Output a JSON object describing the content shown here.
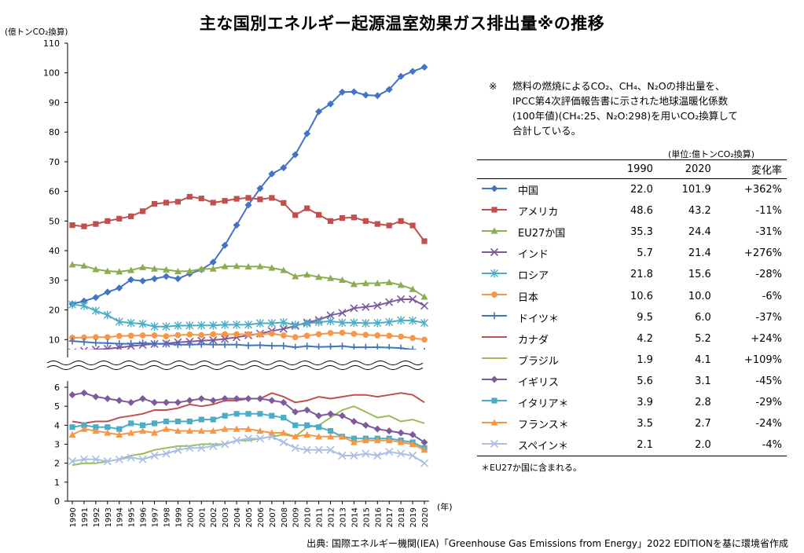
{
  "title": "主な国別エネルギー起源温室効果ガス排出量※の推移",
  "note": {
    "mark": "※",
    "lines": [
      "燃料の燃焼によるCO₂、CH₄、N₂Oの排出量を、",
      "IPCC第4次評価報告書に示された地球温暖化係数",
      "(100年値)(CH₄:25、N₂O:298)を用いCO₂換算して",
      "合計している。"
    ]
  },
  "unit_label": "(単位:億トンCO₂換算)",
  "table_headers": {
    "y1990": "1990",
    "y2020": "2020",
    "change": "変化率"
  },
  "footnote": "＊EU27か国に含まれる。",
  "source": "出典: 国際エネルギー機関(IEA)「Greenhouse Gas Emissions from Energy」2022 EDITIONを基に環境省作成",
  "chart_data": {
    "type": "line",
    "ylabel": "(億トンCO₂換算)",
    "xlabel": "(年)",
    "x": [
      1990,
      1991,
      1992,
      1993,
      1994,
      1995,
      1996,
      1997,
      1998,
      1999,
      2000,
      2001,
      2002,
      2003,
      2004,
      2005,
      2006,
      2007,
      2008,
      2009,
      2010,
      2011,
      2012,
      2013,
      2014,
      2015,
      2016,
      2017,
      2018,
      2019,
      2020
    ],
    "upper_panel": {
      "ylim": [
        0,
        110
      ],
      "yticks": [
        10,
        20,
        30,
        40,
        50,
        60,
        70,
        80,
        90,
        100,
        110
      ]
    },
    "lower_panel": {
      "ylim": [
        0,
        6
      ],
      "yticks": [
        0,
        1,
        2,
        3,
        4,
        5,
        6
      ]
    },
    "series": [
      {
        "name": "中国",
        "panel": "upper",
        "color": "#4472C4",
        "marker": "diamond",
        "v1990": "22.0",
        "v2020": "101.9",
        "change": "+362%",
        "values": [
          22.0,
          23.0,
          24.2,
          26.0,
          27.4,
          30.2,
          29.8,
          30.5,
          31.3,
          30.5,
          32.2,
          33.6,
          36.1,
          41.8,
          48.6,
          55.4,
          61.0,
          65.9,
          68.0,
          72.4,
          79.5,
          86.9,
          89.5,
          93.5,
          93.6,
          92.5,
          92.3,
          94.4,
          98.8,
          100.5,
          101.9
        ]
      },
      {
        "name": "アメリカ",
        "panel": "upper",
        "color": "#C0504D",
        "marker": "square",
        "v1990": "48.6",
        "v2020": "43.2",
        "change": "-11%",
        "values": [
          48.6,
          48.2,
          49.0,
          50.0,
          50.8,
          51.6,
          53.3,
          55.8,
          56.2,
          56.5,
          58.2,
          57.6,
          56.2,
          56.8,
          57.5,
          57.8,
          57.3,
          57.8,
          56.1,
          52.0,
          54.3,
          52.1,
          50.0,
          51.0,
          51.2,
          50.0,
          49.0,
          48.5,
          50.0,
          48.5,
          43.2
        ]
      },
      {
        "name": "EU27か国",
        "panel": "upper",
        "color": "#8CAC50",
        "marker": "triangle",
        "v1990": "35.3",
        "v2020": "24.4",
        "change": "-31%",
        "values": [
          35.3,
          34.9,
          33.7,
          33.1,
          32.9,
          33.4,
          34.4,
          33.9,
          33.6,
          33.0,
          33.1,
          33.8,
          33.9,
          34.7,
          34.8,
          34.6,
          34.7,
          34.2,
          33.4,
          31.3,
          31.9,
          31.1,
          30.7,
          30.1,
          28.7,
          29.0,
          29.0,
          29.3,
          28.4,
          27.0,
          24.4
        ]
      },
      {
        "name": "インド",
        "panel": "upper",
        "color": "#7E5A9B",
        "marker": "x",
        "v1990": "5.7",
        "v2020": "21.4",
        "change": "+276%",
        "values": [
          5.7,
          6.2,
          6.6,
          6.9,
          7.3,
          7.8,
          8.2,
          8.5,
          8.7,
          9.1,
          9.3,
          9.6,
          9.8,
          10.2,
          10.8,
          11.4,
          12.0,
          12.9,
          13.6,
          14.6,
          15.8,
          16.6,
          18.2,
          19.0,
          20.6,
          21.0,
          21.5,
          22.6,
          23.6,
          23.6,
          21.4
        ]
      },
      {
        "name": "ロシア",
        "panel": "upper",
        "color": "#4BACC6",
        "marker": "star",
        "v1990": "21.8",
        "v2020": "15.6",
        "change": "-28%",
        "values": [
          21.8,
          21.4,
          19.7,
          18.3,
          16.0,
          15.6,
          15.3,
          14.4,
          14.4,
          14.7,
          14.7,
          14.8,
          14.8,
          15.0,
          15.0,
          15.0,
          15.5,
          15.5,
          15.8,
          14.9,
          15.4,
          15.9,
          16.2,
          15.7,
          15.7,
          15.5,
          15.6,
          15.9,
          16.5,
          16.4,
          15.6
        ]
      },
      {
        "name": "日本",
        "panel": "upper",
        "color": "#F79646",
        "marker": "circle",
        "v1990": "10.6",
        "v2020": "10.0",
        "change": "-6%",
        "values": [
          10.6,
          10.7,
          10.8,
          10.8,
          11.2,
          11.3,
          11.4,
          11.4,
          11.1,
          11.5,
          11.7,
          11.5,
          11.8,
          11.8,
          11.8,
          11.8,
          11.7,
          12.0,
          11.4,
          10.8,
          11.3,
          11.8,
          12.2,
          12.3,
          11.9,
          11.6,
          11.4,
          11.3,
          11.0,
          10.5,
          10.0
        ]
      },
      {
        "name": "ドイツ＊",
        "panel": "upper",
        "color": "#3F76BE",
        "marker": "plus",
        "v1990": "9.5",
        "v2020": "6.0",
        "change": "-37%",
        "values": [
          9.5,
          9.2,
          8.9,
          8.8,
          8.6,
          8.6,
          8.8,
          8.6,
          8.5,
          8.3,
          8.3,
          8.4,
          8.3,
          8.3,
          8.3,
          8.0,
          8.1,
          7.9,
          7.9,
          7.4,
          7.8,
          7.5,
          7.6,
          7.8,
          7.4,
          7.4,
          7.4,
          7.3,
          7.1,
          6.6,
          6.0
        ]
      },
      {
        "name": "カナダ",
        "panel": "lower",
        "color": "#C0504D",
        "marker": "none",
        "v1990": "4.2",
        "v2020": "5.2",
        "change": "+24%",
        "values": [
          4.2,
          4.1,
          4.2,
          4.2,
          4.4,
          4.5,
          4.6,
          4.8,
          4.8,
          4.9,
          5.1,
          5.0,
          5.1,
          5.3,
          5.3,
          5.4,
          5.4,
          5.7,
          5.5,
          5.2,
          5.3,
          5.5,
          5.4,
          5.5,
          5.6,
          5.6,
          5.5,
          5.6,
          5.7,
          5.6,
          5.2
        ]
      },
      {
        "name": "ブラジル",
        "panel": "lower",
        "color": "#9BBB59",
        "marker": "none",
        "v1990": "1.9",
        "v2020": "4.1",
        "change": "+109%",
        "values": [
          1.9,
          2.0,
          2.0,
          2.1,
          2.2,
          2.4,
          2.5,
          2.7,
          2.8,
          2.9,
          2.9,
          3.0,
          3.0,
          3.0,
          3.2,
          3.2,
          3.3,
          3.4,
          3.5,
          3.4,
          3.9,
          4.0,
          4.4,
          4.8,
          5.0,
          4.7,
          4.4,
          4.5,
          4.2,
          4.3,
          4.1
        ]
      },
      {
        "name": "イギリス",
        "panel": "lower",
        "color": "#7E5A9B",
        "marker": "diamond",
        "v1990": "5.6",
        "v2020": "3.1",
        "change": "-45%",
        "values": [
          5.6,
          5.7,
          5.5,
          5.4,
          5.3,
          5.2,
          5.4,
          5.2,
          5.2,
          5.2,
          5.3,
          5.4,
          5.3,
          5.4,
          5.4,
          5.4,
          5.4,
          5.3,
          5.2,
          4.7,
          4.8,
          4.5,
          4.6,
          4.5,
          4.2,
          4.0,
          3.8,
          3.7,
          3.6,
          3.5,
          3.1
        ]
      },
      {
        "name": "イタリア＊",
        "panel": "lower",
        "color": "#4BACC6",
        "marker": "square",
        "v1990": "3.9",
        "v2020": "2.8",
        "change": "-29%",
        "values": [
          3.9,
          4.0,
          3.9,
          3.9,
          3.8,
          4.1,
          4.0,
          4.1,
          4.2,
          4.2,
          4.2,
          4.3,
          4.3,
          4.5,
          4.6,
          4.6,
          4.6,
          4.5,
          4.4,
          4.0,
          4.0,
          3.9,
          3.7,
          3.4,
          3.3,
          3.3,
          3.3,
          3.3,
          3.2,
          3.1,
          2.8
        ]
      },
      {
        "name": "フランス＊",
        "panel": "lower",
        "color": "#F79646",
        "marker": "triangle",
        "v1990": "3.5",
        "v2020": "2.7",
        "change": "-24%",
        "values": [
          3.5,
          3.8,
          3.7,
          3.6,
          3.5,
          3.6,
          3.7,
          3.6,
          3.8,
          3.7,
          3.7,
          3.7,
          3.7,
          3.8,
          3.8,
          3.8,
          3.7,
          3.6,
          3.6,
          3.4,
          3.5,
          3.4,
          3.4,
          3.4,
          3.1,
          3.2,
          3.2,
          3.2,
          3.1,
          3.0,
          2.7
        ]
      },
      {
        "name": "スペイン＊",
        "panel": "lower",
        "color": "#A9BFE3",
        "marker": "x",
        "v1990": "2.1",
        "v2020": "2.0",
        "change": "-4%",
        "values": [
          2.1,
          2.2,
          2.2,
          2.1,
          2.2,
          2.3,
          2.2,
          2.4,
          2.5,
          2.7,
          2.8,
          2.8,
          2.9,
          3.0,
          3.2,
          3.3,
          3.3,
          3.4,
          3.1,
          2.8,
          2.7,
          2.7,
          2.7,
          2.4,
          2.4,
          2.5,
          2.4,
          2.6,
          2.5,
          2.4,
          2.0
        ]
      }
    ]
  }
}
